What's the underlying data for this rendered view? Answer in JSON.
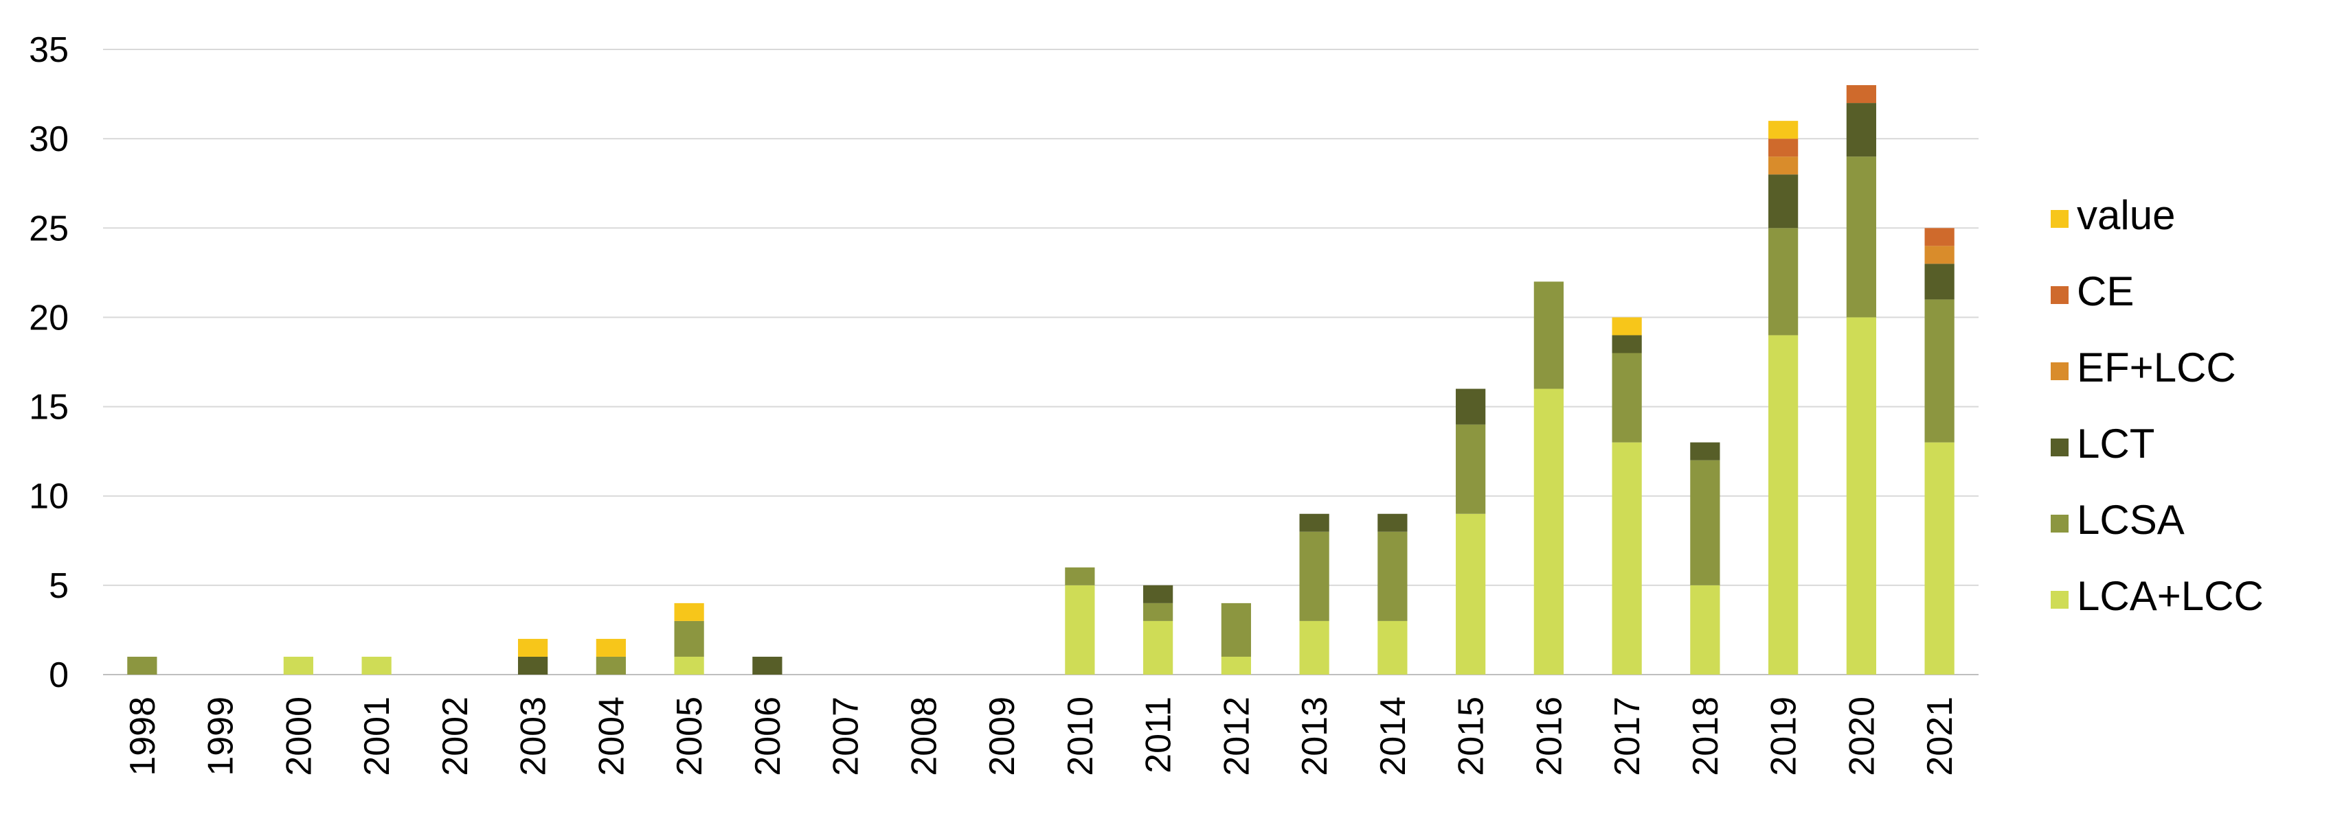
{
  "chart_data": {
    "type": "bar",
    "stacked": true,
    "categories": [
      "1998",
      "1999",
      "2000",
      "2001",
      "2002",
      "2003",
      "2004",
      "2005",
      "2006",
      "2007",
      "2008",
      "2009",
      "2010",
      "2011",
      "2012",
      "2013",
      "2014",
      "2015",
      "2016",
      "2017",
      "2018",
      "2019",
      "2020",
      "2021"
    ],
    "series": [
      {
        "name": "LCA+LCC",
        "color": "#cfdc56",
        "values": [
          0,
          0,
          1,
          1,
          0,
          0,
          0,
          1,
          0,
          0,
          0,
          0,
          5,
          3,
          1,
          3,
          3,
          9,
          16,
          13,
          5,
          19,
          20,
          13
        ]
      },
      {
        "name": "LCSA",
        "color": "#8c9640",
        "values": [
          1,
          0,
          0,
          0,
          0,
          0,
          1,
          2,
          0,
          0,
          0,
          0,
          1,
          1,
          3,
          5,
          5,
          5,
          6,
          5,
          7,
          6,
          9,
          8
        ]
      },
      {
        "name": "LCT",
        "color": "#575e28",
        "values": [
          0,
          0,
          0,
          0,
          0,
          1,
          0,
          0,
          1,
          0,
          0,
          0,
          0,
          1,
          0,
          1,
          1,
          2,
          0,
          1,
          1,
          3,
          3,
          2
        ]
      },
      {
        "name": "EF+LCC",
        "color": "#d98c2b",
        "values": [
          0,
          0,
          0,
          0,
          0,
          0,
          0,
          0,
          0,
          0,
          0,
          0,
          0,
          0,
          0,
          0,
          0,
          0,
          0,
          0,
          0,
          1,
          0,
          1
        ]
      },
      {
        "name": "CE",
        "color": "#cf6a2c",
        "values": [
          0,
          0,
          0,
          0,
          0,
          0,
          0,
          0,
          0,
          0,
          0,
          0,
          0,
          0,
          0,
          0,
          0,
          0,
          0,
          0,
          0,
          1,
          1,
          1
        ]
      },
      {
        "name": "value",
        "color": "#f7c61a",
        "values": [
          0,
          0,
          0,
          0,
          0,
          1,
          1,
          1,
          0,
          0,
          0,
          0,
          0,
          0,
          0,
          0,
          0,
          0,
          0,
          1,
          0,
          1,
          0,
          0
        ]
      }
    ],
    "yticks": [
      "0",
      "5",
      "10",
      "15",
      "20",
      "25",
      "30",
      "35"
    ],
    "ylim": [
      0,
      35
    ],
    "grid": true,
    "legend_position": "right",
    "legend_order": [
      "value",
      "CE",
      "EF+LCC",
      "LCT",
      "LCSA",
      "LCA+LCC"
    ]
  }
}
